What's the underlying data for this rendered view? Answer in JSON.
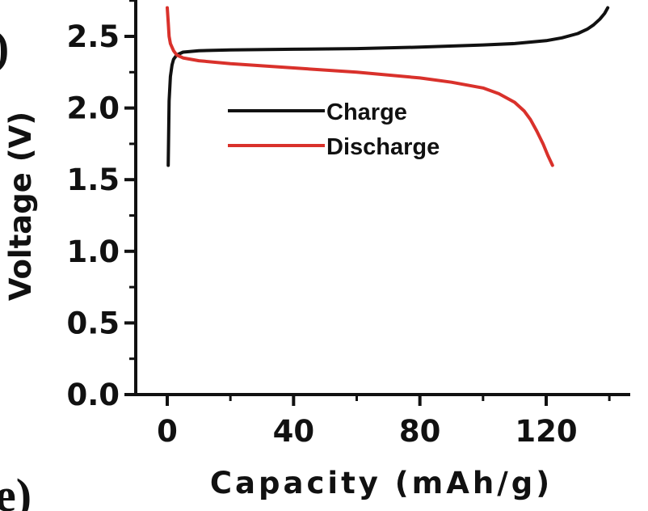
{
  "panel_labels": [
    ")",
    "e)"
  ],
  "chart_data": {
    "type": "line",
    "xlabel": "Capacity (mAh/g)",
    "ylabel": "Voltage (V)",
    "xlim": [
      -12,
      145
    ],
    "ylim": [
      0.0,
      2.75
    ],
    "x_ticks": [
      0,
      40,
      80,
      120
    ],
    "x_tick_labels": [
      "0",
      "40",
      "80",
      "120"
    ],
    "y_ticks": [
      0.0,
      0.5,
      1.0,
      1.5,
      2.0,
      2.5
    ],
    "y_tick_labels": [
      "0.0",
      "0.5",
      "1.0",
      "1.5",
      "2.0",
      "2.5"
    ],
    "legend_position": "center",
    "series": [
      {
        "name": "Charge",
        "color": "#111111",
        "x": [
          0.3,
          0.6,
          1,
          1.5,
          2,
          3,
          5,
          10,
          20,
          40,
          60,
          80,
          100,
          110,
          120,
          125,
          130,
          133,
          135,
          137,
          138.5,
          139.5
        ],
        "y": [
          1.6,
          2.05,
          2.22,
          2.3,
          2.34,
          2.37,
          2.39,
          2.4,
          2.405,
          2.41,
          2.415,
          2.425,
          2.44,
          2.45,
          2.47,
          2.49,
          2.52,
          2.55,
          2.58,
          2.62,
          2.66,
          2.7
        ]
      },
      {
        "name": "Discharge",
        "color": "#d9312b",
        "x": [
          0,
          0.3,
          0.6,
          1,
          2,
          3,
          5,
          10,
          20,
          40,
          60,
          80,
          90,
          100,
          105,
          110,
          113,
          115,
          117,
          119,
          120.5,
          122
        ],
        "y": [
          2.7,
          2.6,
          2.5,
          2.45,
          2.4,
          2.37,
          2.35,
          2.33,
          2.31,
          2.28,
          2.25,
          2.21,
          2.18,
          2.14,
          2.1,
          2.04,
          1.98,
          1.92,
          1.84,
          1.75,
          1.67,
          1.6
        ]
      }
    ]
  }
}
